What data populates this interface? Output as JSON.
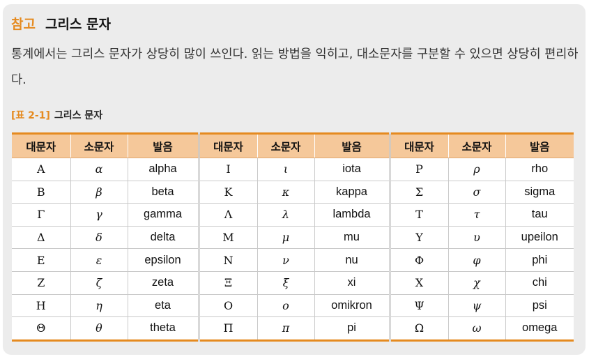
{
  "heading": {
    "tag": "참고",
    "title": "그리스 문자"
  },
  "paragraph": "통계에서는 그리스 문자가 상당히 많이 쓰인다. 읽는 방법을 익히고, 대소문자를 구분할 수 있으면 상당히 편리하다.",
  "caption": {
    "ref": "[표 2-1]",
    "title": "그리스 문자"
  },
  "table": {
    "headers": [
      "대문자",
      "소문자",
      "발음",
      "대문자",
      "소문자",
      "발음",
      "대문자",
      "소문자",
      "발음"
    ],
    "rows": [
      [
        "A",
        "α",
        "alpha",
        "I",
        "ι",
        "iota",
        "P",
        "ρ",
        "rho"
      ],
      [
        "B",
        "β",
        "beta",
        "K",
        "κ",
        "kappa",
        "Σ",
        "σ",
        "sigma"
      ],
      [
        "Γ",
        "γ",
        "gamma",
        "Λ",
        "λ",
        "lambda",
        "T",
        "τ",
        "tau"
      ],
      [
        "Δ",
        "δ",
        "delta",
        "M",
        "μ",
        "mu",
        "Y",
        "υ",
        "upeilon"
      ],
      [
        "E",
        "ε",
        "epsilon",
        "N",
        "ν",
        "nu",
        "Φ",
        "φ",
        "phi"
      ],
      [
        "Z",
        "ζ",
        "zeta",
        "Ξ",
        "ξ",
        "xi",
        "X",
        "χ",
        "chi"
      ],
      [
        "H",
        "η",
        "eta",
        "O",
        "ο",
        "omikron",
        "Ψ",
        "ψ",
        "psi"
      ],
      [
        "Θ",
        "θ",
        "theta",
        "Π",
        "π",
        "pi",
        "Ω",
        "ω",
        "omega"
      ]
    ]
  }
}
